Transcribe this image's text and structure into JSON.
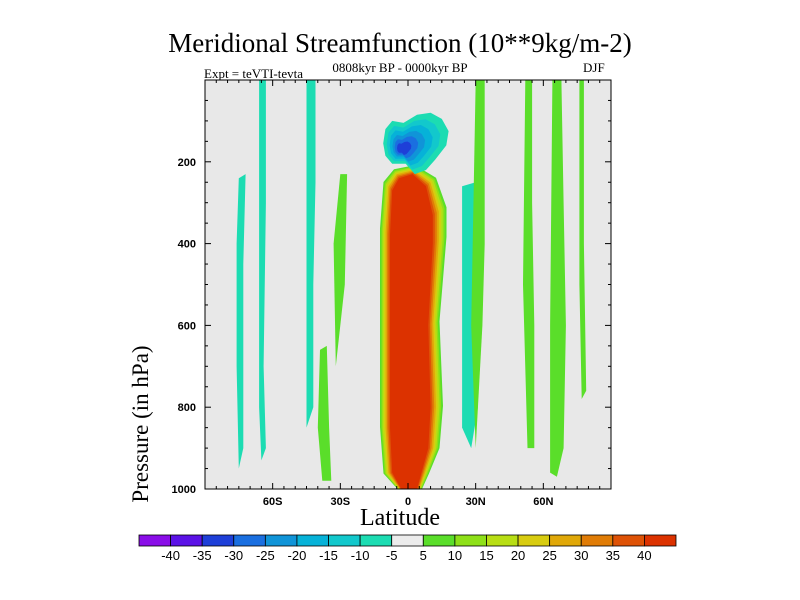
{
  "chart_data": {
    "type": "contour",
    "title": "Meridional Streamfunction (10**9kg/m-2)",
    "subtitle": "0808kyr BP - 0000kyr BP",
    "left_label": "Expt = teVTI-tevta",
    "right_label": "DJF",
    "xlabel": "Latitude",
    "ylabel": "Pressure (in hPa)",
    "xlim": [
      -90,
      90
    ],
    "ylim": [
      1000,
      0
    ],
    "x_ticks": [
      {
        "value": -60,
        "label": "60S"
      },
      {
        "value": -30,
        "label": "30S"
      },
      {
        "value": 0,
        "label": "0"
      },
      {
        "value": 30,
        "label": "30N"
      },
      {
        "value": 60,
        "label": "60N"
      }
    ],
    "y_ticks": [
      {
        "value": 200,
        "label": "200"
      },
      {
        "value": 400,
        "label": "400"
      },
      {
        "value": 600,
        "label": "600"
      },
      {
        "value": 800,
        "label": "800"
      },
      {
        "value": 1000,
        "label": "1000"
      }
    ],
    "background_color": "#e8e8e8",
    "colorbar": {
      "levels": [
        "-40",
        "-35",
        "-30",
        "-25",
        "-20",
        "-15",
        "-10",
        "-5",
        "5",
        "10",
        "15",
        "20",
        "25",
        "30",
        "35",
        "40"
      ],
      "colors": [
        "#8a0ee8",
        "#5b12e6",
        "#1e3fd8",
        "#1a6fe0",
        "#1094d8",
        "#06b2d8",
        "#12c8cc",
        "#1cdcb2",
        "#ececec",
        "#5ade2a",
        "#8ee018",
        "#b8de14",
        "#d8cc10",
        "#e0a808",
        "#e07c06",
        "#de5206",
        "#dc3200"
      ]
    },
    "regions": [
      {
        "name": "core-max",
        "value": 40,
        "color": "#dc3200",
        "points": [
          [
            -3,
            1000
          ],
          [
            4,
            1000
          ],
          [
            6,
            960
          ],
          [
            9,
            900
          ],
          [
            10,
            800
          ],
          [
            9,
            600
          ],
          [
            11,
            400
          ],
          [
            11,
            330
          ],
          [
            8,
            260
          ],
          [
            2,
            230
          ],
          [
            -4,
            240
          ],
          [
            -7,
            270
          ],
          [
            -8,
            380
          ],
          [
            -8,
            600
          ],
          [
            -8,
            850
          ],
          [
            -7,
            960
          ]
        ]
      },
      {
        "name": "southern-cell",
        "value": -35,
        "color": "#1e3fd8",
        "points": [
          [
            -10,
            120
          ],
          [
            -7,
            100
          ],
          [
            -2,
            105
          ],
          [
            4,
            85
          ],
          [
            10,
            80
          ],
          [
            15,
            95
          ],
          [
            18,
            125
          ],
          [
            17,
            160
          ],
          [
            12,
            195
          ],
          [
            8,
            220
          ],
          [
            3,
            230
          ],
          [
            -1,
            205
          ],
          [
            -7,
            205
          ],
          [
            -10,
            185
          ],
          [
            -11,
            155
          ]
        ]
      },
      {
        "name": "sh-band-1",
        "value": -5,
        "color": "#1cdcb2",
        "points": [
          [
            -66,
            0
          ],
          [
            -63,
            0
          ],
          [
            -63,
            300
          ],
          [
            -64,
            700
          ],
          [
            -63,
            900
          ],
          [
            -65,
            930
          ],
          [
            -66,
            800
          ],
          [
            -66,
            300
          ]
        ]
      },
      {
        "name": "sh-band-2",
        "value": -5,
        "color": "#1cdcb2",
        "points": [
          [
            -75,
            240
          ],
          [
            -72,
            230
          ],
          [
            -73,
            450
          ],
          [
            -73,
            700
          ],
          [
            -73,
            900
          ],
          [
            -75,
            950
          ],
          [
            -76,
            700
          ],
          [
            -76,
            400
          ]
        ]
      },
      {
        "name": "sh-band-3",
        "value": -5,
        "color": "#1cdcb2",
        "points": [
          [
            -45,
            0
          ],
          [
            -41,
            0
          ],
          [
            -41,
            250
          ],
          [
            -42,
            500
          ],
          [
            -42,
            800
          ],
          [
            -45,
            850
          ],
          [
            -45,
            400
          ]
        ]
      },
      {
        "name": "nh-cyan-band",
        "value": -5,
        "color": "#1cdcb2",
        "points": [
          [
            24,
            260
          ],
          [
            30,
            250
          ],
          [
            31,
            500
          ],
          [
            31,
            800
          ],
          [
            28,
            900
          ],
          [
            24,
            850
          ],
          [
            24,
            500
          ]
        ]
      },
      {
        "name": "nh-cyan-band-2",
        "value": -5,
        "color": "#1cdcb2",
        "points": [
          [
            65,
            0
          ],
          [
            68,
            0
          ],
          [
            68,
            300
          ],
          [
            68,
            600
          ],
          [
            66,
            800
          ],
          [
            64,
            500
          ]
        ]
      },
      {
        "name": "sh-green-1",
        "value": 5,
        "color": "#5ade2a",
        "points": [
          [
            -39,
            660
          ],
          [
            -36,
            650
          ],
          [
            -35,
            850
          ],
          [
            -34,
            980
          ],
          [
            -38,
            980
          ],
          [
            -40,
            850
          ]
        ]
      },
      {
        "name": "sh-green-2",
        "value": 5,
        "color": "#5ade2a",
        "points": [
          [
            -30,
            230
          ],
          [
            -27,
            230
          ],
          [
            -28,
            500
          ],
          [
            -30,
            600
          ],
          [
            -32,
            700
          ],
          [
            -33,
            400
          ]
        ]
      },
      {
        "name": "nh-green-1",
        "value": 5,
        "color": "#5ade2a",
        "points": [
          [
            30,
            0
          ],
          [
            34,
            0
          ],
          [
            34,
            400
          ],
          [
            33,
            600
          ],
          [
            30,
            900
          ],
          [
            28,
            600
          ]
        ]
      },
      {
        "name": "nh-green-2",
        "value": 5,
        "color": "#5ade2a",
        "points": [
          [
            52,
            0
          ],
          [
            55,
            0
          ],
          [
            55,
            300
          ],
          [
            56,
            600
          ],
          [
            56,
            900
          ],
          [
            53,
            900
          ],
          [
            51,
            500
          ]
        ]
      },
      {
        "name": "nh-green-3",
        "value": 5,
        "color": "#5ade2a",
        "points": [
          [
            64,
            0
          ],
          [
            68,
            0
          ],
          [
            69,
            300
          ],
          [
            70,
            600
          ],
          [
            69,
            900
          ],
          [
            66,
            970
          ],
          [
            63,
            960
          ],
          [
            63,
            600
          ]
        ]
      },
      {
        "name": "nh-green-4",
        "value": 5,
        "color": "#5ade2a",
        "points": [
          [
            76,
            0
          ],
          [
            78,
            0
          ],
          [
            78,
            400
          ],
          [
            79,
            760
          ],
          [
            77,
            780
          ],
          [
            76,
            500
          ]
        ]
      }
    ]
  }
}
